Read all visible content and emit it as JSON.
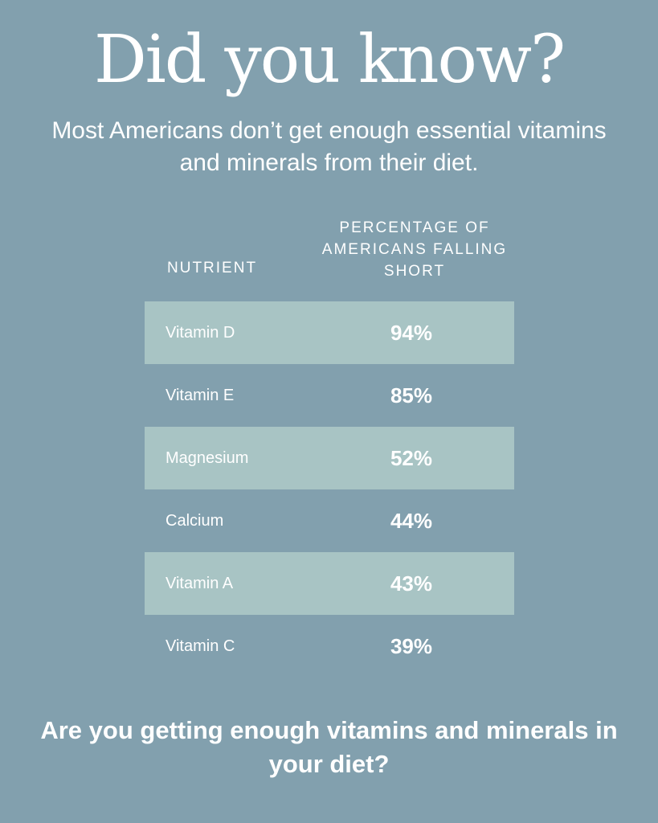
{
  "headline": "Did you know?",
  "subhead": "Most Americans don’t get enough essential vitamins and minerals from their diet.",
  "table": {
    "headers": {
      "nutrient": "NUTRIENT",
      "percentage": "PERCENTAGE OF AMERICANS FALLING SHORT"
    },
    "rows": [
      {
        "nutrient": "Vitamin D",
        "percentage": "94%"
      },
      {
        "nutrient": "Vitamin E",
        "percentage": "85%"
      },
      {
        "nutrient": "Magnesium",
        "percentage": "52%"
      },
      {
        "nutrient": "Calcium",
        "percentage": "44%"
      },
      {
        "nutrient": "Vitamin A",
        "percentage": "43%"
      },
      {
        "nutrient": "Vitamin C",
        "percentage": "39%"
      }
    ]
  },
  "footer": "Are you getting enough vitamins and minerals in your diet?",
  "colors": {
    "background": "#82a0ae",
    "row_shade": "#a8c4c4",
    "text": "#ffffff"
  }
}
